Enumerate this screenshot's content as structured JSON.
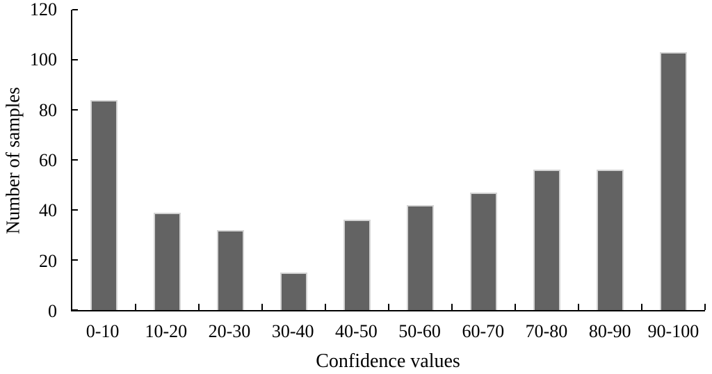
{
  "chart_data": {
    "type": "bar",
    "title": "",
    "categories": [
      "0-10",
      "10-20",
      "20-30",
      "30-40",
      "40-50",
      "50-60",
      "60-70",
      "70-80",
      "80-90",
      "90-100"
    ],
    "values": [
      84,
      39,
      32,
      15,
      36,
      42,
      47,
      56,
      56,
      103
    ],
    "xlabel": "Confidence values",
    "ylabel": "Number of samples",
    "ylim": [
      0,
      120
    ],
    "yticks": [
      0,
      20,
      40,
      60,
      80,
      100,
      120
    ],
    "x_boundary_ticks": [
      10,
      20,
      30,
      40,
      50,
      60,
      70,
      80,
      90,
      100
    ],
    "grid": "off",
    "legend": "none",
    "bar_width_fraction": 0.43,
    "colors": {
      "bar": "#636363",
      "bar_border": "#d4d4d4",
      "axis": "#000000",
      "text": "#000000",
      "background": "#ffffff"
    }
  }
}
